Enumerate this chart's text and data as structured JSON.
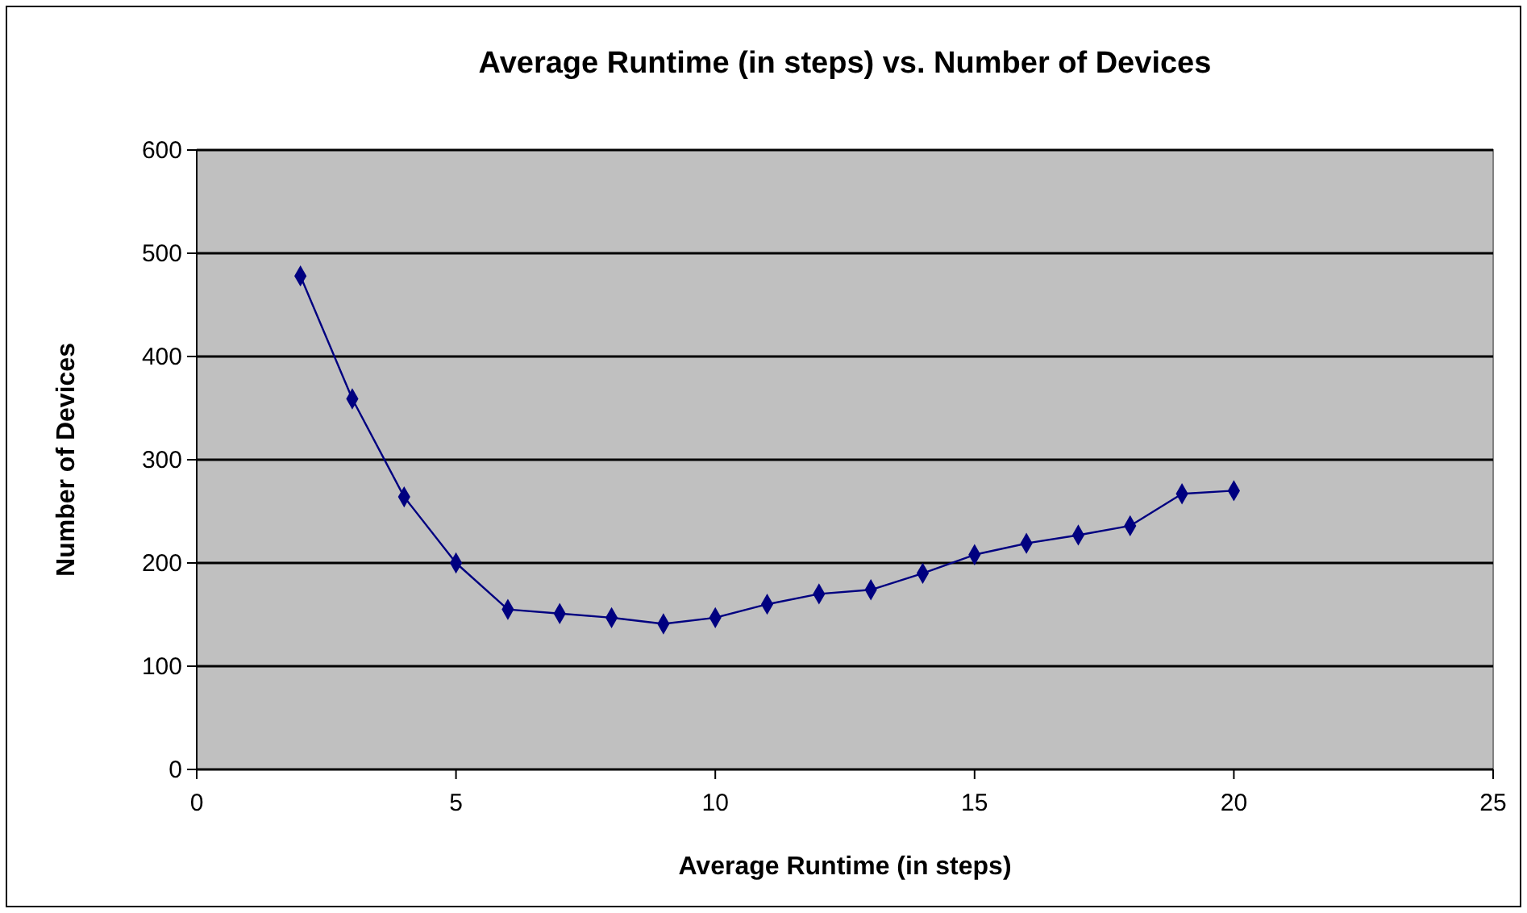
{
  "chart_data": {
    "type": "line",
    "title": "Average Runtime (in steps) vs. Number of Devices",
    "xlabel": "Average Runtime (in steps)",
    "ylabel": "Number of Devices",
    "x": [
      2,
      3,
      4,
      5,
      6,
      7,
      8,
      9,
      10,
      11,
      12,
      13,
      14,
      15,
      16,
      17,
      18,
      19,
      20
    ],
    "series": [
      {
        "color": "#000080",
        "values": [
          478,
          359,
          264,
          200,
          155,
          151,
          147,
          141,
          147,
          160,
          170,
          174,
          190,
          208,
          219,
          227,
          236,
          267,
          270
        ]
      }
    ],
    "xlim": [
      0,
      25
    ],
    "xticks": [
      0,
      5,
      10,
      15,
      20,
      25
    ],
    "ylim": [
      0,
      600
    ],
    "yticks": [
      0,
      100,
      200,
      300,
      400,
      500,
      600
    ],
    "grid": "y",
    "marker": "diamond",
    "line_style": "solid"
  }
}
